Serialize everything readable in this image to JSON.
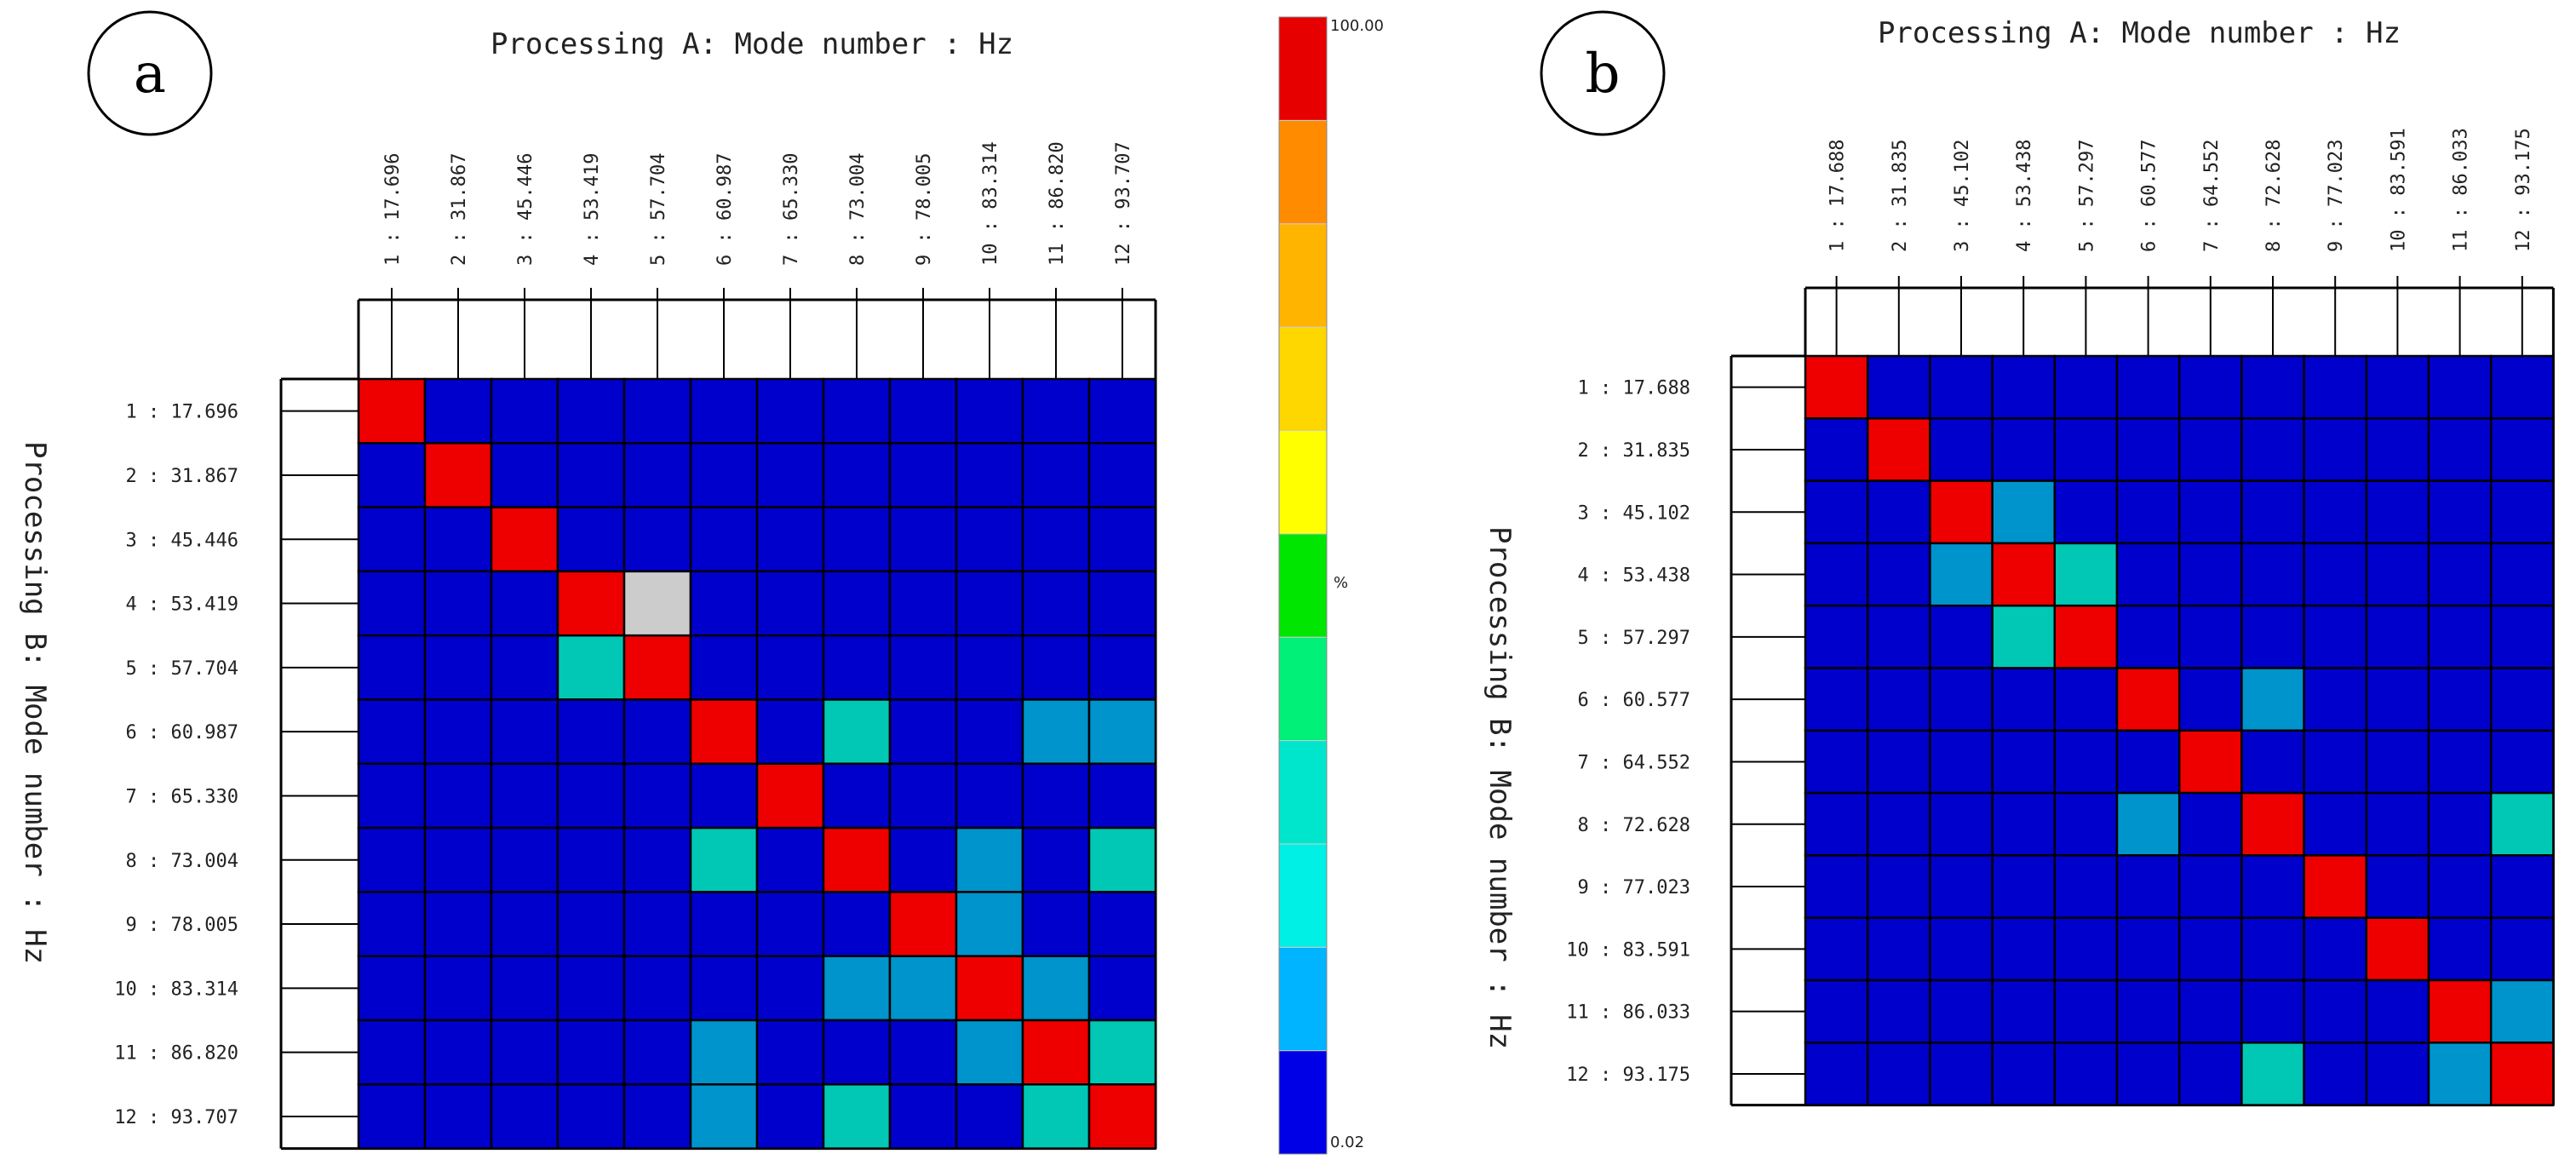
{
  "chart_data": [
    {
      "type": "heatmap",
      "panel_label": "a",
      "title": "Processing A: Mode number : Hz",
      "ylabel": "Processing B: Mode number : Hz",
      "columns": [
        "1 : 17.696",
        "2 : 31.867",
        "3 : 45.446",
        "4 : 53.419",
        "5 : 57.704",
        "6 : 60.987",
        "7 : 65.330",
        "8 : 73.004",
        "9 : 78.005",
        "10 : 83.314",
        "11 : 86.820",
        "12 : 93.707"
      ],
      "rows": [
        "1 : 17.696",
        "2 : 31.867",
        "3 : 45.446",
        "4 : 53.419",
        "5 : 57.704",
        "6 : 60.987",
        "7 : 65.330",
        "8 : 73.004",
        "9 : 78.005",
        "10 : 83.314",
        "11 : 86.820",
        "12 : 93.707"
      ],
      "values": [
        [
          100,
          2,
          2,
          2,
          2,
          2,
          2,
          2,
          2,
          2,
          2,
          2
        ],
        [
          2,
          100,
          2,
          2,
          2,
          2,
          2,
          2,
          2,
          2,
          2,
          2
        ],
        [
          2,
          2,
          100,
          2,
          2,
          2,
          2,
          2,
          2,
          2,
          2,
          2
        ],
        [
          2,
          2,
          2,
          100,
          null,
          2,
          2,
          2,
          2,
          2,
          2,
          2
        ],
        [
          2,
          2,
          2,
          35,
          100,
          2,
          2,
          2,
          2,
          2,
          2,
          2
        ],
        [
          2,
          2,
          2,
          2,
          2,
          100,
          2,
          35,
          2,
          2,
          25,
          25
        ],
        [
          2,
          2,
          2,
          2,
          2,
          2,
          100,
          2,
          2,
          2,
          2,
          2
        ],
        [
          2,
          2,
          2,
          2,
          2,
          35,
          2,
          100,
          2,
          25,
          2,
          35
        ],
        [
          2,
          2,
          2,
          2,
          2,
          2,
          2,
          2,
          100,
          25,
          2,
          2
        ],
        [
          2,
          2,
          2,
          2,
          2,
          2,
          2,
          25,
          25,
          100,
          25,
          2
        ],
        [
          2,
          2,
          2,
          2,
          2,
          25,
          2,
          2,
          2,
          25,
          100,
          35
        ],
        [
          2,
          2,
          2,
          2,
          2,
          25,
          2,
          35,
          2,
          2,
          35,
          100
        ]
      ]
    },
    {
      "type": "heatmap",
      "panel_label": "b",
      "title": "Processing A: Mode number : Hz",
      "ylabel": "Processing B: Mode number : Hz",
      "columns": [
        "1 : 17.688",
        "2 : 31.835",
        "3 : 45.102",
        "4 : 53.438",
        "5 : 57.297",
        "6 : 60.577",
        "7 : 64.552",
        "8 : 72.628",
        "9 : 77.023",
        "10 : 83.591",
        "11 : 86.033",
        "12 : 93.175"
      ],
      "rows": [
        "1 : 17.688",
        "2 : 31.835",
        "3 : 45.102",
        "4 : 53.438",
        "5 : 57.297",
        "6 : 60.577",
        "7 : 64.552",
        "8 : 72.628",
        "9 : 77.023",
        "10 : 83.591",
        "11 : 86.033",
        "12 : 93.175"
      ],
      "values": [
        [
          100,
          2,
          2,
          2,
          2,
          2,
          2,
          2,
          2,
          2,
          2,
          2
        ],
        [
          2,
          100,
          2,
          2,
          2,
          2,
          2,
          2,
          2,
          2,
          2,
          2
        ],
        [
          2,
          2,
          100,
          25,
          2,
          2,
          2,
          2,
          2,
          2,
          2,
          2
        ],
        [
          2,
          2,
          25,
          100,
          35,
          2,
          2,
          2,
          2,
          2,
          2,
          2
        ],
        [
          2,
          2,
          2,
          35,
          100,
          2,
          2,
          2,
          2,
          2,
          2,
          2
        ],
        [
          2,
          2,
          2,
          2,
          2,
          100,
          2,
          25,
          2,
          2,
          2,
          2
        ],
        [
          2,
          2,
          2,
          2,
          2,
          2,
          100,
          2,
          2,
          2,
          2,
          2
        ],
        [
          2,
          2,
          2,
          2,
          2,
          25,
          2,
          100,
          2,
          2,
          2,
          35
        ],
        [
          2,
          2,
          2,
          2,
          2,
          2,
          2,
          2,
          100,
          2,
          2,
          2
        ],
        [
          2,
          2,
          2,
          2,
          2,
          2,
          2,
          2,
          2,
          100,
          2,
          2
        ],
        [
          2,
          2,
          2,
          2,
          2,
          2,
          2,
          2,
          2,
          2,
          100,
          25
        ],
        [
          2,
          2,
          2,
          2,
          2,
          2,
          2,
          35,
          2,
          2,
          25,
          100
        ]
      ]
    }
  ],
  "colorbar": {
    "max_label": "100.00",
    "min_label": "0.02",
    "unit_label": "%",
    "range": [
      0.02,
      100
    ],
    "colors": [
      "#0000e6",
      "#00b4ff",
      "#00f0e6",
      "#00e6cd",
      "#00f078",
      "#00e600",
      "#ffff00",
      "#ffd700",
      "#ffb400",
      "#ff8c00",
      "#e60000"
    ]
  },
  "cell_colors": {
    "low": "#0000cc",
    "light_blue": "#0094cd",
    "teal": "#00c8b4",
    "high": "#ee0000",
    "missing": "#cccccc"
  }
}
